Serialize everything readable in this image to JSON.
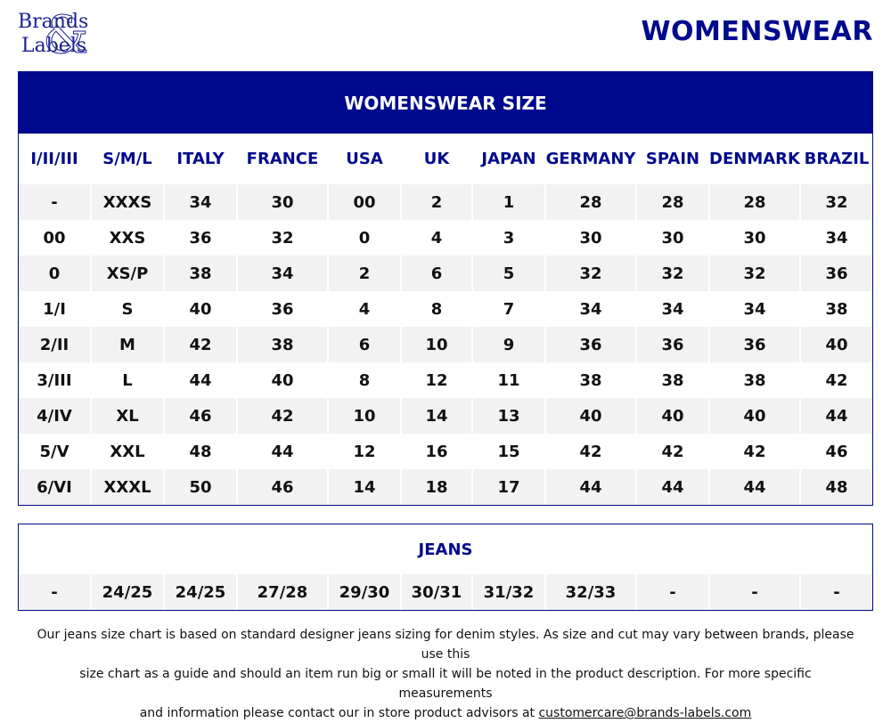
{
  "brand": {
    "line1": "Brands",
    "line2": "Labels",
    "amp": "&"
  },
  "page_title": "WOMENSWEAR",
  "size_table": {
    "title": "WOMENSWEAR SIZE",
    "columns": [
      "I/II/III",
      "S/M/L",
      "ITALY",
      "FRANCE",
      "USA",
      "UK",
      "JAPAN",
      "GERMANY",
      "SPAIN",
      "DENMARK",
      "BRAZIL"
    ],
    "rows": [
      [
        "-",
        "XXXS",
        "34",
        "30",
        "00",
        "2",
        "1",
        "28",
        "28",
        "28",
        "32"
      ],
      [
        "00",
        "XXS",
        "36",
        "32",
        "0",
        "4",
        "3",
        "30",
        "30",
        "30",
        "34"
      ],
      [
        "0",
        "XS/P",
        "38",
        "34",
        "2",
        "6",
        "5",
        "32",
        "32",
        "32",
        "36"
      ],
      [
        "1/I",
        "S",
        "40",
        "36",
        "4",
        "8",
        "7",
        "34",
        "34",
        "34",
        "38"
      ],
      [
        "2/II",
        "M",
        "42",
        "38",
        "6",
        "10",
        "9",
        "36",
        "36",
        "36",
        "40"
      ],
      [
        "3/III",
        "L",
        "44",
        "40",
        "8",
        "12",
        "11",
        "38",
        "38",
        "38",
        "42"
      ],
      [
        "4/IV",
        "XL",
        "46",
        "42",
        "10",
        "14",
        "13",
        "40",
        "40",
        "40",
        "44"
      ],
      [
        "5/V",
        "XXL",
        "48",
        "44",
        "12",
        "16",
        "15",
        "42",
        "42",
        "42",
        "46"
      ],
      [
        "6/VI",
        "XXXL",
        "50",
        "46",
        "14",
        "18",
        "17",
        "44",
        "44",
        "44",
        "48"
      ]
    ]
  },
  "jeans_table": {
    "title": "JEANS",
    "row": [
      "-",
      "24/25",
      "24/25",
      "27/28",
      "29/30",
      "30/31",
      "31/32",
      "32/33",
      "-",
      "-",
      "-"
    ]
  },
  "footer": {
    "line1": "Our jeans size chart is based on standard designer jeans sizing for denim styles. As size and cut may vary between brands, please use this",
    "line2": "size chart as a guide and should an item run big or small it will be noted in the product description. For more specific measurements",
    "line3_prefix": "and information please contact our in store product advisors at ",
    "email": "customercare@brands-labels.com"
  },
  "colors": {
    "brand_navy": "#000a8c",
    "stripe": "#f2f2f2"
  }
}
